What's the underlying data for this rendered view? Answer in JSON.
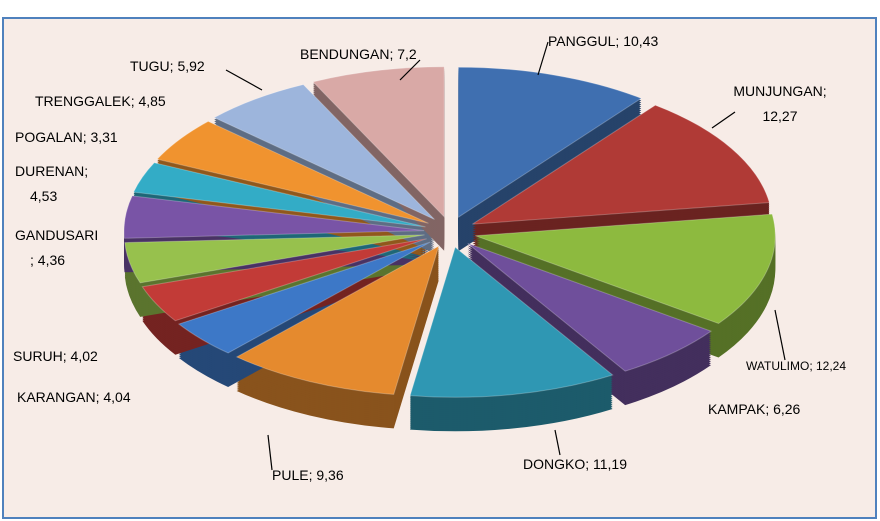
{
  "chart_data": {
    "type": "pie",
    "labels": [
      "PANGGUL; 10,43",
      "MUNJUNGAN;\n12,27",
      "WATULIMO; 12,24",
      "KAMPAK; 6,26",
      "DONGKO; 11,19",
      "PULE; 9,36",
      "KARANGAN; 4,04",
      "SURUH; 4,02",
      "GANDUSARI\n; 4,36",
      "DURENAN;\n4,53",
      "POGALAN; 3,31",
      "TRENGGALEK; 4,85",
      "TUGU; 5,92",
      "BENDUNGAN; 7,2"
    ],
    "values": [
      10.43,
      12.27,
      12.24,
      6.26,
      11.19,
      9.36,
      4.04,
      4.02,
      4.36,
      4.53,
      3.31,
      4.85,
      5.92,
      7.2
    ],
    "colors": [
      "#3f6fb0",
      "#b03a36",
      "#8dba3f",
      "#6f4f9b",
      "#2f97b3",
      "#e58a2e",
      "#3d78c7",
      "#c23b37",
      "#97c14d",
      "#7954a6",
      "#33acc6",
      "#f0932f",
      "#9db5dc",
      "#d9a9a6"
    ]
  }
}
